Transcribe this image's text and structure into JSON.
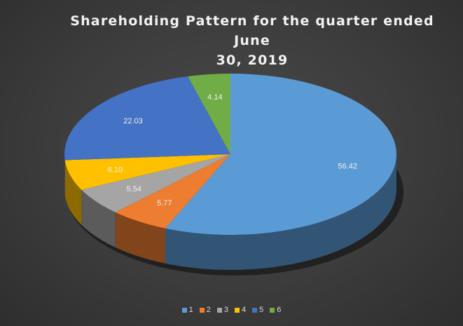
{
  "chart_data": {
    "type": "pie",
    "title": "Shareholding Pattern for the quarter ended June 30, 2019",
    "categories": [
      "1",
      "2",
      "3",
      "4",
      "5",
      "6"
    ],
    "values": [
      56.42,
      5.77,
      5.54,
      6.1,
      22.03,
      4.14
    ],
    "labels": [
      "56.42",
      "5.77",
      "5.54",
      "6.10",
      "22.03",
      "4.14"
    ],
    "colors": [
      "#5b9bd5",
      "#ed7d31",
      "#a5a5a5",
      "#ffc000",
      "#4472c4",
      "#70ad47"
    ],
    "style": "3d",
    "legend_position": "bottom"
  },
  "title_line1": "Shareholding Pattern for the quarter ended June",
  "title_line2": "30, 2019",
  "legend": [
    {
      "label": "1",
      "color": "#5b9bd5"
    },
    {
      "label": "2",
      "color": "#ed7d31"
    },
    {
      "label": "3",
      "color": "#a5a5a5"
    },
    {
      "label": "4",
      "color": "#ffc000"
    },
    {
      "label": "5",
      "color": "#4472c4"
    },
    {
      "label": "6",
      "color": "#70ad47"
    }
  ]
}
